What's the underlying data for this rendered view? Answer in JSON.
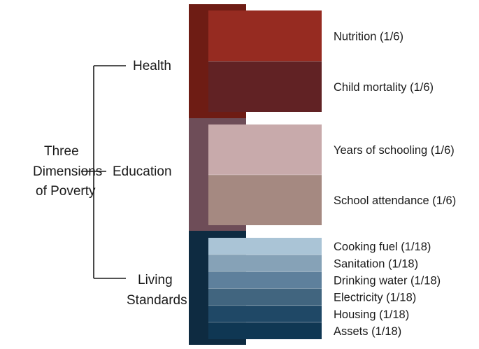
{
  "root": {
    "lines": [
      "Three",
      "Dimensions",
      "of Poverty"
    ]
  },
  "dimensions": [
    {
      "lines": [
        "Health"
      ],
      "color": "#6e1c14",
      "indicators": [
        {
          "label": "Nutrition (1/6)",
          "weight": 0.16667,
          "color": "#962b21"
        },
        {
          "label": "Child mortality (1/6)",
          "weight": 0.16667,
          "color": "#612224"
        }
      ]
    },
    {
      "lines": [
        "Education"
      ],
      "color": "#6e4d58",
      "indicators": [
        {
          "label": "Years of schooling (1/6)",
          "weight": 0.16667,
          "color": "#c8aaab"
        },
        {
          "label": "School attendance (1/6)",
          "weight": 0.16667,
          "color": "#a58981"
        }
      ]
    },
    {
      "lines": [
        "Living",
        "Standards"
      ],
      "color": "#0e2b41",
      "indicators": [
        {
          "label": "Cooking fuel (1/18)",
          "weight": 0.05556,
          "color": "#aac4d6"
        },
        {
          "label": "Sanitation (1/18)",
          "weight": 0.05556,
          "color": "#86a2b7"
        },
        {
          "label": "Drinking water (1/18)",
          "weight": 0.05556,
          "color": "#5e809c"
        },
        {
          "label": "Electricity (1/18)",
          "weight": 0.05556,
          "color": "#41657f"
        },
        {
          "label": "Housing (1/18)",
          "weight": 0.05556,
          "color": "#1f4866"
        },
        {
          "label": "Assets (1/18)",
          "weight": 0.05556,
          "color": "#0f3753"
        }
      ]
    }
  ]
}
